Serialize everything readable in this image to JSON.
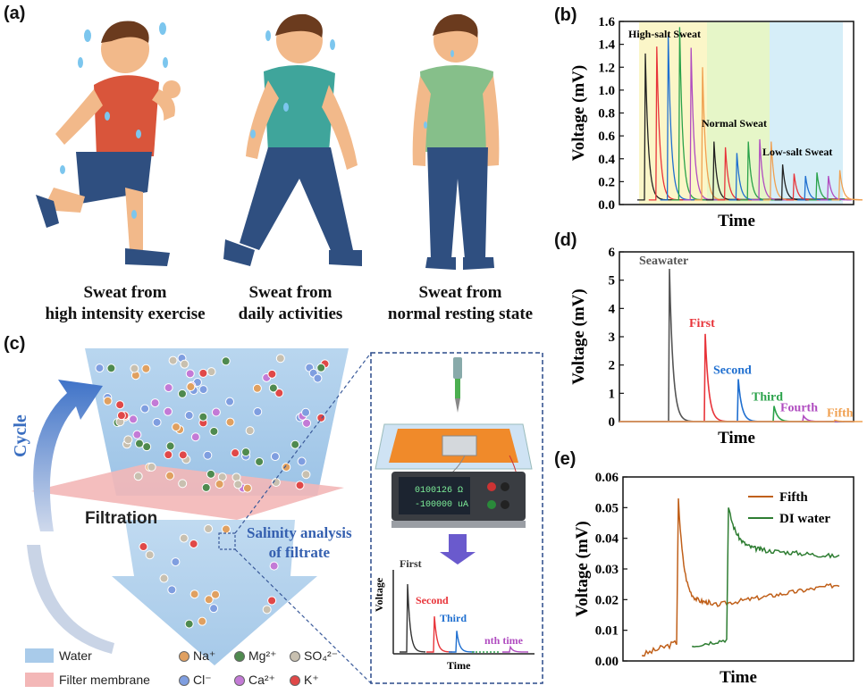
{
  "panel_labels": {
    "a": "(a)",
    "b": "(b)",
    "c": "(c)",
    "d": "(d)",
    "e": "(e)"
  },
  "panel_a": {
    "captions": [
      {
        "line1": "Sweat from",
        "line2": "high intensity exercise"
      },
      {
        "line1": "Sweat from",
        "line2": "daily activities"
      },
      {
        "line1": "Sweat from",
        "line2": "normal resting state"
      }
    ],
    "colors": {
      "shirt_runner": "#d9553b",
      "shirt_walker": "#3fa59b",
      "shirt_rest": "#86bf8a",
      "pants": "#2f4f80",
      "skin": "#f2b98a",
      "hair": "#6b3b1e",
      "sweat": "#7cc6ee"
    }
  },
  "panel_c": {
    "cycle_label": "Cycle",
    "filtration_label": "Filtration",
    "analysis_label_1": "Salinity analysis",
    "analysis_label_2": "of filtrate",
    "meter_reading_1": "0100126 Ω",
    "meter_reading_2": "-100000 uA",
    "mini_chart": {
      "ylabel": "Voltage",
      "xlabel": "Time",
      "labels": [
        "First",
        "Second",
        "Third",
        "nth time"
      ],
      "colors": [
        "#333333",
        "#e8343a",
        "#1f6fd0",
        "#b04cc0"
      ]
    },
    "legend": {
      "water": "Water",
      "filter": "Filter membrane",
      "ions": [
        {
          "label": "Na⁺",
          "color": "#e0a060"
        },
        {
          "label": "Mg²⁺",
          "color": "#4f8a4f"
        },
        {
          "label": "SO₄²⁻",
          "color": "#c8c0b0"
        },
        {
          "label": "Cl⁻",
          "color": "#7f9ee0"
        },
        {
          "label": "Ca²⁺",
          "color": "#c37ad6"
        },
        {
          "label": "K⁺",
          "color": "#e04848"
        }
      ]
    }
  },
  "chart_data": [
    {
      "id": "b",
      "type": "line",
      "title": "",
      "xlabel": "Time",
      "ylabel": "Voltage (mV)",
      "ylim": [
        0,
        1.6
      ],
      "yticks": [
        "0.0",
        "0.2",
        "0.4",
        "0.6",
        "0.8",
        "1.0",
        "1.2",
        "1.4",
        "1.6"
      ],
      "annotations": [
        "High-salt Sweat",
        "Normal Sweat",
        "Low-salt Sweat"
      ],
      "region_colors": [
        "#fbf6c8",
        "#e6f6c8",
        "#d6eef8"
      ],
      "series_colors": [
        "#222222",
        "#e8343a",
        "#1f6fd0",
        "#2aa24a",
        "#b04cc0",
        "#f0a050"
      ],
      "peaks": [
        1.32,
        1.38,
        1.48,
        1.55,
        1.37,
        1.2,
        0.55,
        0.5,
        0.45,
        0.55,
        0.57,
        0.55,
        0.35,
        0.27,
        0.25,
        0.28,
        0.25,
        0.3
      ]
    },
    {
      "id": "d",
      "type": "line",
      "xlabel": "Time",
      "ylabel": "Voltage (mV)",
      "ylim": [
        0,
        6
      ],
      "yticks": [
        "0",
        "1",
        "2",
        "3",
        "4",
        "5",
        "6"
      ],
      "series": [
        {
          "name": "Seawater",
          "peak": 5.4,
          "color": "#555555"
        },
        {
          "name": "First",
          "peak": 3.1,
          "color": "#e8343a"
        },
        {
          "name": "Second",
          "peak": 1.5,
          "color": "#1f6fd0"
        },
        {
          "name": "Third",
          "peak": 0.55,
          "color": "#2aa24a"
        },
        {
          "name": "Fourth",
          "peak": 0.2,
          "color": "#b04cc0"
        },
        {
          "name": "Fifth",
          "peak": 0.05,
          "color": "#f0a050"
        }
      ]
    },
    {
      "id": "e",
      "type": "line",
      "xlabel": "Time",
      "ylabel": "Voltage (mV)",
      "ylim": [
        0,
        0.06
      ],
      "yticks": [
        "0.00",
        "0.01",
        "0.02",
        "0.03",
        "0.04",
        "0.05",
        "0.06"
      ],
      "series": [
        {
          "name": "Fifth",
          "color": "#c0601a",
          "peak": 0.053,
          "baseline": 0.002,
          "end": 0.025
        },
        {
          "name": "DI water",
          "color": "#2e7d32",
          "peak": 0.05,
          "baseline": 0.005,
          "end": 0.034
        }
      ]
    }
  ]
}
